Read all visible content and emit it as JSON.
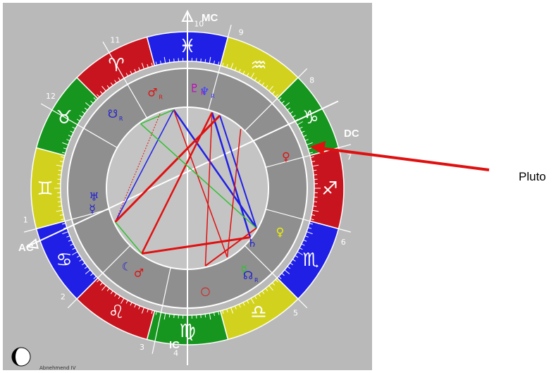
{
  "axes": {
    "mc": "MC",
    "ic": "IC",
    "ac": "AC",
    "dc": "DC"
  },
  "houses": [
    "1",
    "2",
    "3",
    "4",
    "5",
    "6",
    "7",
    "8",
    "9",
    "10",
    "11",
    "12"
  ],
  "signs": [
    {
      "symbol": "♈",
      "color": "#c8141e"
    },
    {
      "symbol": "♓",
      "color": "#1f1fe6"
    },
    {
      "symbol": "♒",
      "color": "#d2d21e"
    },
    {
      "symbol": "♑",
      "color": "#16961e"
    },
    {
      "symbol": "♐",
      "color": "#c8141e"
    },
    {
      "symbol": "♏",
      "color": "#1f1fe6"
    },
    {
      "symbol": "♎",
      "color": "#d2d21e"
    },
    {
      "symbol": "♍",
      "color": "#16961e"
    },
    {
      "symbol": "♌",
      "color": "#c8141e"
    },
    {
      "symbol": "♋",
      "color": "#1f1fe6"
    },
    {
      "symbol": "♊",
      "color": "#d2d21e"
    },
    {
      "symbol": "♉",
      "color": "#16961e"
    }
  ],
  "planets": [
    {
      "name": "mars",
      "glyph": "♂",
      "suffix": "R",
      "color": "#e01010"
    },
    {
      "name": "pluto-r",
      "glyph": "♇",
      "suffix": "R",
      "color": "#c000c0"
    },
    {
      "name": "neptune",
      "glyph": "♆",
      "suffix": "R",
      "color": "#4040ff"
    },
    {
      "name": "node",
      "glyph": "☋",
      "suffix": "R",
      "color": "#2020d0"
    },
    {
      "name": "pluto",
      "glyph": "♀",
      "suffix": "",
      "color": "#e01010"
    },
    {
      "name": "venus",
      "glyph": "♀",
      "suffix": "",
      "color": "#f0f000"
    },
    {
      "name": "jupiter-mercury",
      "glyph": "☿",
      "suffix": "",
      "color": "#2020d0"
    },
    {
      "name": "uranus",
      "glyph": "♅",
      "suffix": "",
      "color": "#2020d0"
    },
    {
      "name": "saturn",
      "glyph": "♄",
      "suffix": "",
      "color": "#2020d0"
    },
    {
      "name": "mercury",
      "glyph": "☿",
      "suffix": "",
      "color": "#30c030"
    },
    {
      "name": "node-south",
      "glyph": "☊",
      "suffix": "R",
      "color": "#2020d0"
    },
    {
      "name": "moon",
      "glyph": "☾",
      "suffix": "",
      "color": "#2020d0"
    },
    {
      "name": "mars2",
      "glyph": "♂",
      "suffix": "",
      "color": "#e01010"
    },
    {
      "name": "sun",
      "glyph": "○",
      "suffix": "",
      "color": "#e01010"
    }
  ],
  "callout": {
    "label": "Pluto",
    "color": "#e01010"
  },
  "moon_phase": {
    "text": "Abnehmend IV"
  }
}
